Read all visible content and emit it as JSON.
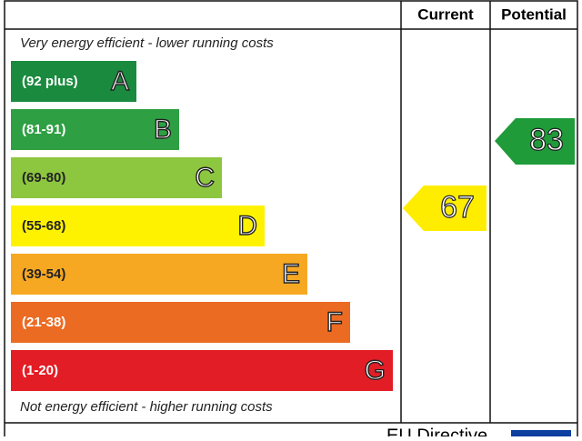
{
  "header": {
    "current": "Current",
    "potential": "Potential"
  },
  "top_note": "Very energy efficient - lower running costs",
  "bottom_note": "Not energy efficient - higher running costs",
  "bands": [
    {
      "range": "(92 plus)",
      "letter": "A"
    },
    {
      "range": "(81-91)",
      "letter": "B"
    },
    {
      "range": "(69-80)",
      "letter": "C"
    },
    {
      "range": "(55-68)",
      "letter": "D"
    },
    {
      "range": "(39-54)",
      "letter": "E"
    },
    {
      "range": "(21-38)",
      "letter": "F"
    },
    {
      "range": "(1-20)",
      "letter": "G"
    }
  ],
  "current": "67",
  "potential": "83",
  "footer": "EU Directive"
}
